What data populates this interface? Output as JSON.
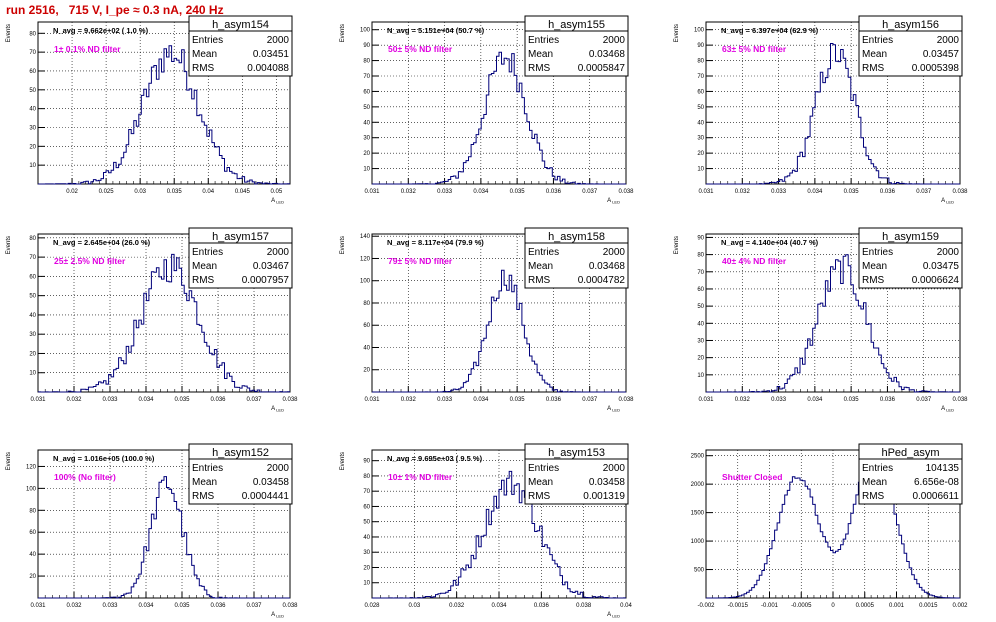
{
  "title": "run 2516,   715 V, I_pe ≈ 0.3 nA, 240 Hz",
  "chart_data": [
    {
      "type": "histogram",
      "name": "h_asym154",
      "stats": {
        "Entries": "2000",
        "Mean": "0.03451",
        "RMS": "0.004088"
      },
      "navg": "N_avg = 9.662e+02 ( 1.0 %)",
      "filter": "1± 0.1% ND filter",
      "ylabel": "Events",
      "xlabel": "A_LED",
      "xlim": [
        0.015,
        0.052
      ],
      "ylim": [
        0,
        86
      ],
      "xticks": [
        "0.02",
        "0.025",
        "0.03",
        "0.035",
        "0.04",
        "0.045",
        "0.05"
      ],
      "xtick_values": [
        0.02,
        0.025,
        0.03,
        0.035,
        0.04,
        0.045,
        0.05
      ],
      "yticks": [
        10,
        20,
        30,
        40,
        50,
        60,
        70,
        80
      ],
      "peak": {
        "mean": 0.03451,
        "sigma": 0.0041,
        "max": 85
      }
    },
    {
      "type": "histogram",
      "name": "h_asym155",
      "stats": {
        "Entries": "2000",
        "Mean": "0.03468",
        "RMS": "0.0005847"
      },
      "navg": "N_avg = 5.151e+04 (50.7 %)",
      "filter": "50± 5% ND filter",
      "ylabel": "Events",
      "xlabel": "A_LED",
      "xlim": [
        0.031,
        0.038
      ],
      "ylim": [
        0,
        105
      ],
      "xticks": [
        "0.031",
        "0.032",
        "0.033",
        "0.034",
        "0.035",
        "0.036",
        "0.037",
        "0.038"
      ],
      "xtick_values": [
        0.031,
        0.032,
        0.033,
        0.034,
        0.035,
        0.036,
        0.037,
        0.038
      ],
      "yticks": [
        10,
        20,
        30,
        40,
        50,
        60,
        70,
        80,
        90,
        100
      ],
      "peak": {
        "mean": 0.03468,
        "sigma": 0.00058,
        "max": 100
      }
    },
    {
      "type": "histogram",
      "name": "h_asym156",
      "stats": {
        "Entries": "2000",
        "Mean": "0.03457",
        "RMS": "0.0005398"
      },
      "navg": "N_avg = 6.397e+04 (62.9 %)",
      "filter": "63± 5% ND filter",
      "ylabel": "Events",
      "xlabel": "A_LED",
      "xlim": [
        0.031,
        0.038
      ],
      "ylim": [
        0,
        105
      ],
      "xticks": [
        "0.031",
        "0.032",
        "0.033",
        "0.034",
        "0.035",
        "0.036",
        "0.037",
        "0.038"
      ],
      "xtick_values": [
        0.031,
        0.032,
        0.033,
        0.034,
        0.035,
        0.036,
        0.037,
        0.038
      ],
      "yticks": [
        10,
        20,
        30,
        40,
        50,
        60,
        70,
        80,
        90,
        100
      ],
      "peak": {
        "mean": 0.03457,
        "sigma": 0.00054,
        "max": 103
      }
    },
    {
      "type": "histogram",
      "name": "h_asym157",
      "stats": {
        "Entries": "2000",
        "Mean": "0.03467",
        "RMS": "0.0007957"
      },
      "navg": "N_avg = 2.645e+04 (26.0 %)",
      "filter": "25± 2.5% ND filter",
      "ylabel": "Events",
      "xlabel": "A_LED",
      "xlim": [
        0.031,
        0.038
      ],
      "ylim": [
        0,
        82
      ],
      "xticks": [
        "0.031",
        "0.032",
        "0.033",
        "0.034",
        "0.035",
        "0.036",
        "0.037",
        "0.038"
      ],
      "xtick_values": [
        0.031,
        0.032,
        0.033,
        0.034,
        0.035,
        0.036,
        0.037,
        0.038
      ],
      "yticks": [
        10,
        20,
        30,
        40,
        50,
        60,
        70,
        80
      ],
      "peak": {
        "mean": 0.03467,
        "sigma": 0.0008,
        "max": 80
      }
    },
    {
      "type": "histogram",
      "name": "h_asym158",
      "stats": {
        "Entries": "2000",
        "Mean": "0.03468",
        "RMS": "0.0004782"
      },
      "navg": "N_avg = 8.117e+04 (79.9 %)",
      "filter": "79± 5% ND filter",
      "ylabel": "Events",
      "xlabel": "A_LED",
      "xlim": [
        0.031,
        0.038
      ],
      "ylim": [
        0,
        142
      ],
      "xticks": [
        "0.031",
        "0.032",
        "0.033",
        "0.034",
        "0.035",
        "0.036",
        "0.037",
        "0.038"
      ],
      "xtick_values": [
        0.031,
        0.032,
        0.033,
        0.034,
        0.035,
        0.036,
        0.037,
        0.038
      ],
      "yticks": [
        20,
        40,
        60,
        80,
        100,
        120,
        140
      ],
      "peak": {
        "mean": 0.03468,
        "sigma": 0.00048,
        "max": 126
      }
    },
    {
      "type": "histogram",
      "name": "h_asym159",
      "stats": {
        "Entries": "2000",
        "Mean": "0.03475",
        "RMS": "0.0006624"
      },
      "navg": "N_avg = 4.140e+04 (40.7 %)",
      "filter": "40± 4% ND filter",
      "ylabel": "Events",
      "xlabel": "A_LED",
      "xlim": [
        0.031,
        0.038
      ],
      "ylim": [
        0,
        92
      ],
      "xticks": [
        "0.031",
        "0.032",
        "0.033",
        "0.034",
        "0.035",
        "0.036",
        "0.037",
        "0.038"
      ],
      "xtick_values": [
        0.031,
        0.032,
        0.033,
        0.034,
        0.035,
        0.036,
        0.037,
        0.038
      ],
      "yticks": [
        10,
        20,
        30,
        40,
        50,
        60,
        70,
        80,
        90
      ],
      "peak": {
        "mean": 0.03475,
        "sigma": 0.00066,
        "max": 88
      }
    },
    {
      "type": "histogram",
      "name": "h_asym152",
      "stats": {
        "Entries": "2000",
        "Mean": "0.03458",
        "RMS": "0.0004441"
      },
      "navg": "N_avg = 1.016e+05 (100.0 %)",
      "filter": "100% (No filter)",
      "ylabel": "Events",
      "xlabel": "A_LED",
      "xlim": [
        0.031,
        0.038
      ],
      "ylim": [
        0,
        135
      ],
      "xticks": [
        "0.031",
        "0.032",
        "0.033",
        "0.034",
        "0.035",
        "0.036",
        "0.037",
        "0.038"
      ],
      "xtick_values": [
        0.031,
        0.032,
        0.033,
        0.034,
        0.035,
        0.036,
        0.037,
        0.038
      ],
      "yticks": [
        20,
        40,
        60,
        80,
        100,
        120
      ],
      "peak": {
        "mean": 0.03458,
        "sigma": 0.00044,
        "max": 128
      }
    },
    {
      "type": "histogram",
      "name": "h_asym153",
      "stats": {
        "Entries": "2000",
        "Mean": "0.03458",
        "RMS": "0.001319"
      },
      "navg": "N_avg = 9.695e+03 ( 9.5 %)",
      "filter": "10± 1% ND filter",
      "ylabel": "Events",
      "xlabel": "A_LED",
      "xlim": [
        0.028,
        0.04
      ],
      "ylim": [
        0,
        97
      ],
      "xticks": [
        "0.028",
        "0.03",
        "0.032",
        "0.034",
        "0.036",
        "0.038",
        "0.04"
      ],
      "xtick_values": [
        0.028,
        0.03,
        0.032,
        0.034,
        0.036,
        0.038,
        0.04
      ],
      "yticks": [
        10,
        20,
        30,
        40,
        50,
        60,
        70,
        80,
        90
      ],
      "peak": {
        "mean": 0.03458,
        "sigma": 0.0013,
        "max": 92
      }
    },
    {
      "type": "histogram",
      "name": "hPed_asym",
      "stats": {
        "Entries": "104135",
        "Mean": "6.656e-08",
        "RMS": "0.0006611"
      },
      "navg": "",
      "filter": "Shutter Closed",
      "ylabel": "",
      "xlabel": "",
      "xlim": [
        -0.002,
        0.002
      ],
      "ylim": [
        0,
        2600
      ],
      "xticks": [
        "-0.002",
        "-0.0015",
        "-0.001",
        "-0.0005",
        "0",
        "0.0005",
        "0.001",
        "0.0015",
        "0.002"
      ],
      "xtick_values": [
        -0.002,
        -0.0015,
        -0.001,
        -0.0005,
        0,
        0.0005,
        0.001,
        0.0015,
        0.002
      ],
      "yticks": [
        500,
        1000,
        1500,
        2000,
        2500
      ],
      "peak": {
        "double": true,
        "mu1": -0.00055,
        "mu2": 0.00065,
        "sigma": 0.00032,
        "max": 2550
      }
    }
  ]
}
